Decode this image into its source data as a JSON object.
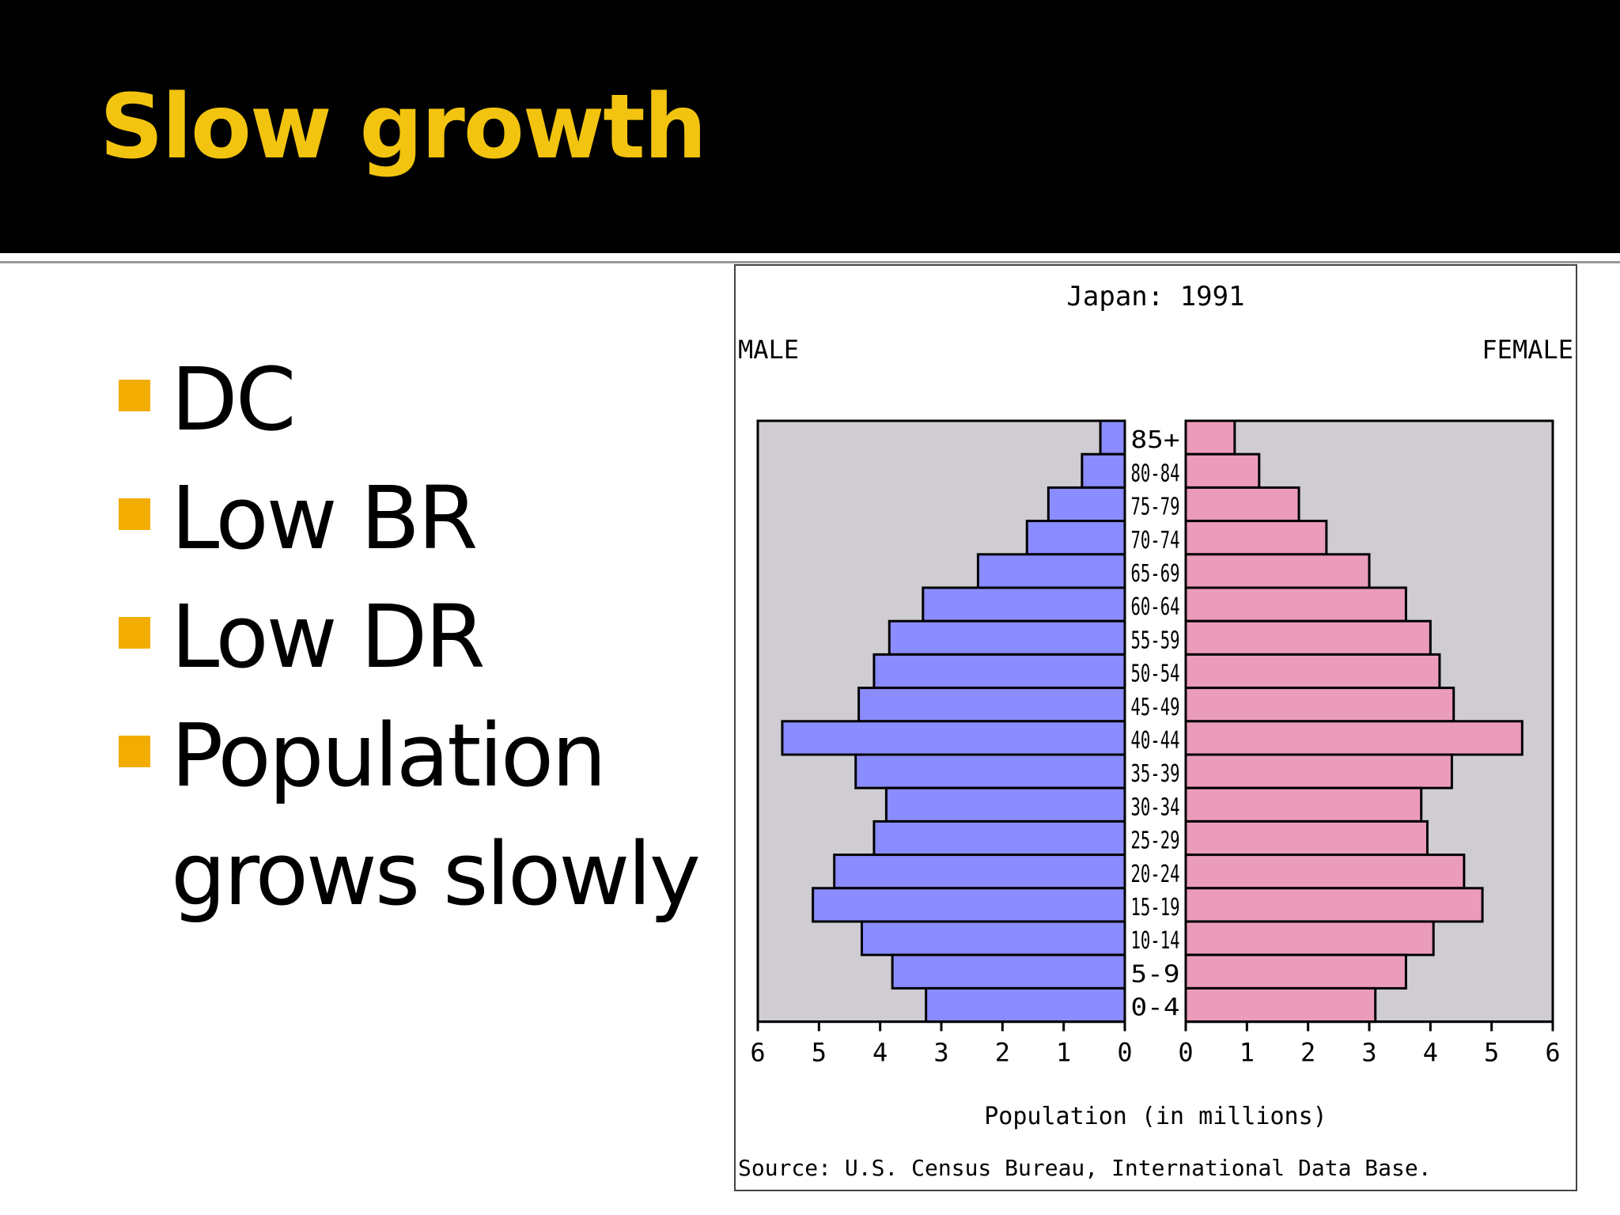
{
  "slide": {
    "title": "Slow growth",
    "bullets": [
      "DC",
      "Low BR",
      "Low DR",
      "Population grows slowly"
    ]
  },
  "colors": {
    "header_bg": "#000000",
    "title": "#f2c40f",
    "bullet_marker": "#f2ad00",
    "male_bar": "#8a8cff",
    "female_bar": "#ec9cbb",
    "plot_bg": "#cfcdd2"
  },
  "chart_data": {
    "type": "bar",
    "orientation": "horizontal-pyramid",
    "title": "Japan: 1991",
    "left_label": "MALE",
    "right_label": "FEMALE",
    "xlabel": "Population (in millions)",
    "source": "Source: U.S. Census Bureau, International Data Base.",
    "xlim": [
      0,
      6
    ],
    "xticks": [
      "6",
      "5",
      "4",
      "3",
      "2",
      "1",
      "0",
      "0",
      "1",
      "2",
      "3",
      "4",
      "5",
      "6"
    ],
    "categories": [
      "85+",
      "80-84",
      "75-79",
      "70-74",
      "65-69",
      "60-64",
      "55-59",
      "50-54",
      "45-49",
      "40-44",
      "35-39",
      "30-34",
      "25-29",
      "20-24",
      "15-19",
      "10-14",
      "5-9",
      "0-4"
    ],
    "series": [
      {
        "name": "MALE",
        "values": [
          0.4,
          0.7,
          1.25,
          1.6,
          2.4,
          3.3,
          3.85,
          4.1,
          4.35,
          5.6,
          4.4,
          3.9,
          4.1,
          4.75,
          5.1,
          4.3,
          3.8,
          3.25
        ]
      },
      {
        "name": "FEMALE",
        "values": [
          0.8,
          1.2,
          1.85,
          2.3,
          3.0,
          3.6,
          4.0,
          4.15,
          4.38,
          5.5,
          4.35,
          3.85,
          3.95,
          4.55,
          4.85,
          4.05,
          3.6,
          3.1
        ]
      }
    ]
  }
}
